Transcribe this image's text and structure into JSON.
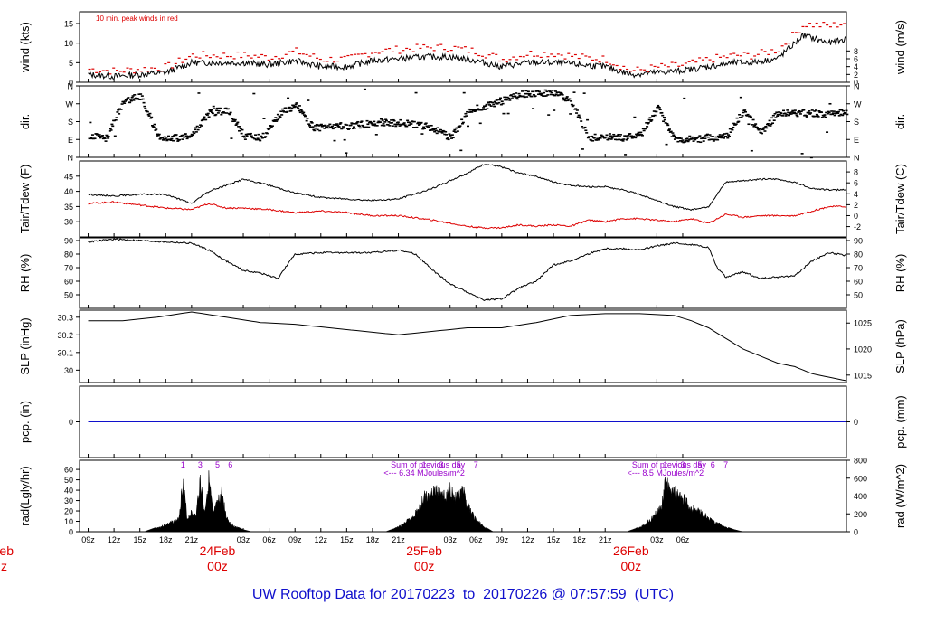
{
  "footer_title": "UW Rooftop Data for 20170223  to  20170226 @ 07:57:59  (UTC)",
  "colors": {
    "red": "#dd0000",
    "blue": "#1010cc",
    "purple": "#9900cc",
    "black": "#000000"
  },
  "chart_data": [
    {
      "id": "wind",
      "type": "line",
      "ylabel_left": "wind (kts)",
      "ylabel_right": "wind (m/s)",
      "ylim": [
        0,
        18
      ],
      "ticks_left": [
        0,
        5,
        10,
        15
      ],
      "ticks_right": [
        {
          "value": 0,
          "label": "0"
        },
        {
          "value": 2,
          "label": "2"
        },
        {
          "value": 4,
          "label": "4"
        },
        {
          "value": 6,
          "label": "6"
        },
        {
          "value": 8,
          "label": "8"
        }
      ],
      "annotation": "10 min. peak winds in red",
      "series": [
        {
          "name": "wind",
          "color": "black",
          "x": [
            0,
            3,
            6,
            9,
            12,
            15,
            18,
            21,
            24,
            27,
            30,
            33,
            36,
            39,
            42,
            45,
            48,
            51,
            54,
            57,
            60,
            63,
            66,
            69,
            72,
            75,
            77,
            80,
            83,
            86,
            88
          ],
          "values": [
            2,
            1.5,
            2,
            2.5,
            5,
            5,
            5,
            4.5,
            5.5,
            4,
            4,
            5.5,
            6,
            6.5,
            6.5,
            5.5,
            4,
            5,
            5,
            4.5,
            4,
            2,
            2.5,
            3,
            4,
            5,
            5,
            6,
            12,
            10,
            11
          ]
        },
        {
          "name": "10 min. peak winds",
          "color": "red",
          "x": [
            0,
            3,
            6,
            9,
            12,
            15,
            18,
            21,
            24,
            27,
            30,
            33,
            36,
            39,
            42,
            45,
            48,
            51,
            54,
            57,
            60,
            63,
            66,
            69,
            72,
            75,
            77,
            80,
            83,
            86,
            88
          ],
          "values": [
            3.5,
            3,
            3.5,
            4,
            7,
            7,
            7,
            6.5,
            8,
            6,
            6,
            8,
            8.5,
            9,
            9,
            8,
            6,
            7.5,
            7.5,
            6.5,
            6,
            3,
            4,
            4.5,
            6,
            7,
            7,
            8.5,
            15,
            14.5,
            15.5
          ]
        }
      ]
    },
    {
      "id": "dir",
      "type": "scatter",
      "ylabel_left": "dir.",
      "ylabel_right": "dir.",
      "ylim": [
        0,
        360
      ],
      "ticks_left": [
        {
          "value": 0,
          "label": "N"
        },
        {
          "value": 90,
          "label": "E"
        },
        {
          "value": 180,
          "label": "S"
        },
        {
          "value": 270,
          "label": "W"
        },
        {
          "value": 360,
          "label": "N"
        }
      ],
      "ticks_right": [
        {
          "value": 0,
          "label": "N"
        },
        {
          "value": 90,
          "label": "E"
        },
        {
          "value": 180,
          "label": "S"
        },
        {
          "value": 270,
          "label": "W"
        },
        {
          "value": 360,
          "label": "N"
        }
      ],
      "series": [
        {
          "name": "direction",
          "color": "black",
          "x": [
            0,
            2,
            4,
            6,
            8,
            10,
            12,
            14,
            16,
            18,
            20,
            22,
            24,
            26,
            28,
            30,
            32,
            34,
            36,
            38,
            40,
            42,
            44,
            46,
            48,
            50,
            52,
            54,
            56,
            58,
            60,
            62,
            64,
            66,
            68,
            70,
            72,
            74,
            76,
            78,
            80,
            82,
            84,
            86,
            88
          ],
          "values": [
            110,
            100,
            290,
            310,
            110,
            100,
            120,
            230,
            240,
            110,
            100,
            220,
            270,
            150,
            160,
            160,
            170,
            180,
            175,
            170,
            150,
            100,
            240,
            260,
            290,
            320,
            330,
            330,
            280,
            100,
            110,
            100,
            120,
            250,
            90,
            95,
            100,
            110,
            240,
            125,
            230,
            225,
            225,
            220,
            230
          ]
        }
      ]
    },
    {
      "id": "temp",
      "type": "line",
      "ylabel_left": "Tair/Tdew (F)",
      "ylabel_right": "Tair/Tdew (C)",
      "ylim": [
        25,
        50
      ],
      "ticks_left": [
        30,
        35,
        40,
        45
      ],
      "ticks_right": [
        {
          "value": 28.4,
          "label": "-2"
        },
        {
          "value": 32,
          "label": "0"
        },
        {
          "value": 35.6,
          "label": "2"
        },
        {
          "value": 39.2,
          "label": "4"
        },
        {
          "value": 42.8,
          "label": "6"
        },
        {
          "value": 46.4,
          "label": "8"
        }
      ],
      "series": [
        {
          "name": "Tair",
          "color": "black",
          "x": [
            0,
            3,
            6,
            9,
            12,
            14,
            16,
            18,
            21,
            24,
            27,
            30,
            33,
            36,
            40,
            44,
            46,
            48,
            50,
            52,
            54,
            56,
            58,
            60,
            62,
            64,
            66,
            68,
            70,
            72,
            74,
            76,
            78,
            80,
            82,
            84,
            86,
            88
          ],
          "values": [
            39,
            38.5,
            39,
            39,
            36,
            40,
            42,
            44,
            42,
            39.5,
            38,
            37.5,
            37,
            37.5,
            41,
            46,
            49,
            48,
            46,
            45,
            43,
            42,
            41.5,
            41.5,
            40.5,
            39,
            37,
            35,
            34,
            35,
            43,
            43.5,
            44,
            44,
            43,
            41,
            40.5,
            40.5
          ]
        },
        {
          "name": "Tdew",
          "color": "red",
          "x": [
            0,
            3,
            6,
            9,
            12,
            14,
            16,
            18,
            21,
            24,
            27,
            30,
            33,
            36,
            40,
            44,
            46,
            48,
            50,
            52,
            54,
            56,
            58,
            60,
            62,
            64,
            66,
            68,
            70,
            72,
            74,
            76,
            78,
            80,
            82,
            84,
            86,
            88
          ],
          "values": [
            36,
            36.5,
            35.5,
            34.5,
            34,
            36,
            34.5,
            34.5,
            34,
            33,
            33.5,
            33,
            32,
            32,
            30.5,
            28.5,
            28,
            28,
            29,
            28.5,
            29,
            28.5,
            30.5,
            30,
            31,
            31,
            30.5,
            30,
            31,
            29.5,
            32.5,
            31.5,
            32,
            32,
            32,
            33.5,
            35,
            35
          ]
        }
      ]
    },
    {
      "id": "rh",
      "type": "line",
      "ylabel_left": "RH (%)",
      "ylabel_right": "RH (%)",
      "ylim": [
        40,
        92
      ],
      "ticks_left": [
        50,
        60,
        70,
        80,
        90
      ],
      "ticks_right": [
        {
          "value": 50,
          "label": "50"
        },
        {
          "value": 60,
          "label": "60"
        },
        {
          "value": 70,
          "label": "70"
        },
        {
          "value": 80,
          "label": "80"
        },
        {
          "value": 90,
          "label": "90"
        }
      ],
      "series": [
        {
          "name": "RH",
          "color": "black",
          "x": [
            0,
            3,
            6,
            9,
            12,
            14,
            16,
            18,
            20,
            22,
            24,
            27,
            30,
            33,
            36,
            38,
            40,
            42,
            44,
            46,
            48,
            50,
            52,
            54,
            56,
            58,
            60,
            62,
            64,
            66,
            68,
            70,
            72,
            73,
            74,
            76,
            78,
            80,
            82,
            84,
            86,
            88
          ],
          "values": [
            89,
            91,
            90,
            89,
            88,
            83,
            75,
            68,
            66,
            62,
            80,
            81,
            81,
            81,
            83,
            80,
            68,
            58,
            52,
            46,
            47,
            55,
            60,
            72,
            75,
            80,
            84,
            84,
            83,
            86,
            88,
            87,
            85,
            70,
            63,
            67,
            62,
            63,
            64,
            75,
            81,
            79
          ]
        }
      ]
    },
    {
      "id": "slp",
      "type": "line",
      "ylabel_left": "SLP (inHg)",
      "ylabel_right": "SLP (hPa)",
      "ylim": [
        29.93,
        30.34
      ],
      "ticks_left": [
        30.0,
        30.1,
        30.2,
        30.3
      ],
      "ticks_right": [
        {
          "value": 29.972,
          "label": "1015"
        },
        {
          "value": 30.12,
          "label": "1020"
        },
        {
          "value": 30.267,
          "label": "1025"
        }
      ],
      "series": [
        {
          "name": "SLP",
          "color": "black",
          "x": [
            0,
            4,
            8,
            12,
            16,
            20,
            24,
            28,
            32,
            36,
            40,
            44,
            48,
            52,
            56,
            60,
            64,
            68,
            70,
            72,
            74,
            76,
            78,
            80,
            82,
            84,
            86,
            88
          ],
          "values": [
            30.28,
            30.28,
            30.3,
            30.33,
            30.3,
            30.27,
            30.26,
            30.24,
            30.22,
            30.2,
            30.22,
            30.24,
            30.24,
            30.27,
            30.31,
            30.32,
            30.32,
            30.31,
            30.28,
            30.24,
            30.18,
            30.12,
            30.08,
            30.04,
            30.02,
            29.98,
            29.96,
            29.94
          ]
        }
      ]
    },
    {
      "id": "pcp",
      "type": "line",
      "ylabel_left": "pcp. (in)",
      "ylabel_right": "pcp. (mm)",
      "ylim": [
        -1,
        1
      ],
      "ticks_left": [
        0
      ],
      "ticks_right": [
        {
          "value": 0,
          "label": "0"
        }
      ],
      "series": [
        {
          "name": "precip",
          "color": "blue",
          "x": [
            0,
            88
          ],
          "values": [
            0,
            0
          ]
        }
      ]
    },
    {
      "id": "rad",
      "type": "area",
      "ylabel_left": "rad(Lgly/hr)",
      "ylabel_right": "rad (W/m^2)",
      "ylim": [
        0,
        68.8
      ],
      "ticks_left": [
        0,
        10,
        20,
        30,
        40,
        50,
        60
      ],
      "ticks_right": [
        {
          "value": 0,
          "label": "0"
        },
        {
          "value": 17.2,
          "label": "200"
        },
        {
          "value": 34.4,
          "label": "400"
        },
        {
          "value": 51.6,
          "label": "600"
        },
        {
          "value": 68.8,
          "label": "800"
        }
      ],
      "annotations": [
        {
          "text": "Sum of previous day",
          "x": 39
        },
        {
          "text": "<--- 6.34 MJoules/m^2",
          "x": 39
        },
        {
          "text": "Sum of previous day",
          "x": 67
        },
        {
          "text": "<--- 8.5 MJoules/m^2",
          "x": 67
        }
      ],
      "hour_marks": [
        {
          "label": "1",
          "x": 11
        },
        {
          "label": "3",
          "x": 13
        },
        {
          "label": "5",
          "x": 15
        },
        {
          "label": "6",
          "x": 16.5
        },
        {
          "label": "1",
          "x": 39
        },
        {
          "label": "3",
          "x": 41
        },
        {
          "label": "5",
          "x": 43
        },
        {
          "label": "7",
          "x": 45
        },
        {
          "label": "1",
          "x": 67
        },
        {
          "label": "3",
          "x": 69
        },
        {
          "label": "5",
          "x": 71
        },
        {
          "label": "6",
          "x": 72.5
        },
        {
          "label": "7",
          "x": 74
        }
      ],
      "series": [
        {
          "name": "solar radiation",
          "color": "black",
          "x": [
            6.5,
            7.5,
            8.5,
            9.5,
            10.5,
            11,
            11.5,
            12,
            12.5,
            13,
            13.5,
            14,
            14.5,
            15,
            15.5,
            16,
            16.5,
            17,
            18,
            19,
            34.5,
            35.5,
            36.5,
            37.5,
            38.5,
            39,
            39.5,
            40,
            40.5,
            41,
            41.5,
            42,
            42.5,
            43,
            43.5,
            44,
            44.5,
            45,
            46,
            47,
            62.5,
            63.5,
            64.5,
            65.5,
            66.5,
            67,
            67.5,
            68,
            68.5,
            69,
            69.5,
            70,
            70.5,
            71,
            71.5,
            72,
            73,
            74,
            75,
            76
          ],
          "values": [
            0,
            3,
            6,
            10,
            14,
            58,
            15,
            22,
            17,
            60,
            22,
            60,
            20,
            32,
            45,
            18,
            10,
            6,
            2,
            0,
            0,
            3,
            8,
            16,
            28,
            42,
            38,
            52,
            44,
            50,
            36,
            53,
            38,
            40,
            46,
            30,
            22,
            14,
            5,
            0,
            0,
            3,
            8,
            16,
            28,
            56,
            52,
            46,
            40,
            38,
            33,
            26,
            26,
            22,
            20,
            15,
            10,
            5,
            2,
            0
          ]
        }
      ]
    }
  ],
  "x_axis": {
    "xlim": [
      -1,
      88
    ],
    "ticks": [
      {
        "x": 0,
        "label": "09z"
      },
      {
        "x": 3,
        "label": "12z"
      },
      {
        "x": 6,
        "label": "15z"
      },
      {
        "x": 9,
        "label": "18z"
      },
      {
        "x": 12,
        "label": "21z"
      },
      {
        "x": 18,
        "label": "03z"
      },
      {
        "x": 21,
        "label": "06z"
      },
      {
        "x": 24,
        "label": "09z"
      },
      {
        "x": 27,
        "label": "12z"
      },
      {
        "x": 30,
        "label": "15z"
      },
      {
        "x": 33,
        "label": "18z"
      },
      {
        "x": 36,
        "label": "21z"
      },
      {
        "x": 42,
        "label": "03z"
      },
      {
        "x": 45,
        "label": "06z"
      },
      {
        "x": 48,
        "label": "09z"
      },
      {
        "x": 51,
        "label": "12z"
      },
      {
        "x": 54,
        "label": "15z"
      },
      {
        "x": 57,
        "label": "18z"
      },
      {
        "x": 60,
        "label": "21z"
      },
      {
        "x": 66,
        "label": "03z"
      },
      {
        "x": 69,
        "label": "06z"
      }
    ],
    "day_markers": [
      {
        "x": 15,
        "date": "24Feb",
        "time": "00z"
      },
      {
        "x": 39,
        "date": "25Feb",
        "time": "00z"
      },
      {
        "x": 63,
        "date": "26Feb",
        "time": "00z"
      }
    ],
    "left_cut_day": {
      "date": "eb",
      "time": "z"
    }
  }
}
